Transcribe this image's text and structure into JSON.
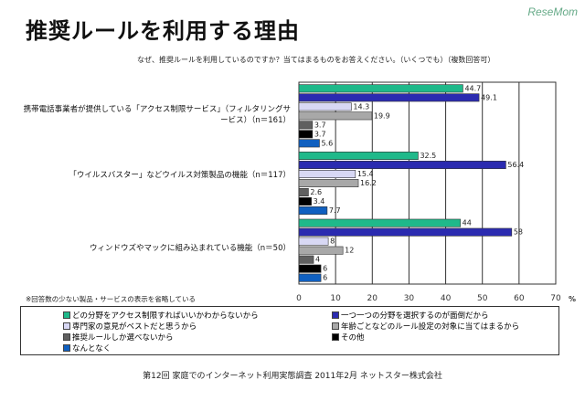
{
  "title": "推奨ルールを利用する理由",
  "logo": "ReseMom",
  "question": "なぜ、推奨ルールを利用しているのですか？当てはまるものをお答えください。（いくつでも）（複数回答可）",
  "note": "※回答数の少ない製品・サービスの表示を省略している",
  "footer": "第12回 家庭でのインターネット利用実態調査 2011年2月 ネットスター株式会社",
  "chart_data": {
    "type": "bar",
    "orientation": "horizontal",
    "categories": [
      "携帯電話事業者が提供している「アクセス制限サービス」（フィルタリングサービス）（n＝161）",
      "「ウイルスバスター」などウイルス対策製品の機能（n＝117）",
      "ウィンドウズやマックに組み込まれている機能（n＝50）"
    ],
    "series": [
      {
        "name": "どの分野をアクセス制限すればいいかわからないから",
        "color": "#1fb98a",
        "values": [
          44.7,
          32.5,
          44
        ]
      },
      {
        "name": "一つ一つの分野を選択するのが面倒だから",
        "color": "#2b2bb0",
        "values": [
          49.1,
          56.4,
          58
        ]
      },
      {
        "name": "専門家の意見がベストだと思うから",
        "color": "#d8d8f4",
        "values": [
          14.3,
          15.4,
          8
        ]
      },
      {
        "name": "年齢ごとなどのルール設定の対象に当てはまるから",
        "color": "#a8a8a8",
        "values": [
          19.9,
          16.2,
          12
        ]
      },
      {
        "name": "推奨ルールしか選べないから",
        "color": "#606060",
        "values": [
          3.7,
          2.6,
          4
        ]
      },
      {
        "name": "その他",
        "color": "#000000",
        "values": [
          3.7,
          3.4,
          6
        ]
      },
      {
        "name": "なんとなく",
        "color": "#1060c0",
        "values": [
          5.6,
          7.7,
          6
        ]
      }
    ],
    "data_labels": [
      [
        "44.7",
        "32.5",
        "44"
      ],
      [
        "49.1",
        "56.4",
        "58"
      ],
      [
        "14.3",
        "15.4",
        "8"
      ],
      [
        "19.9",
        "16.2",
        "12"
      ],
      [
        "3.7",
        "2.6",
        "4"
      ],
      [
        "3.7",
        "3.4",
        "6"
      ],
      [
        "5.6",
        "7.7",
        "6"
      ]
    ],
    "xlim": [
      0,
      70
    ],
    "xticks": [
      "0",
      "10",
      "20",
      "30",
      "40",
      "50",
      "60",
      "70"
    ],
    "xunit": "%",
    "grid": true,
    "legend": "bottom"
  }
}
